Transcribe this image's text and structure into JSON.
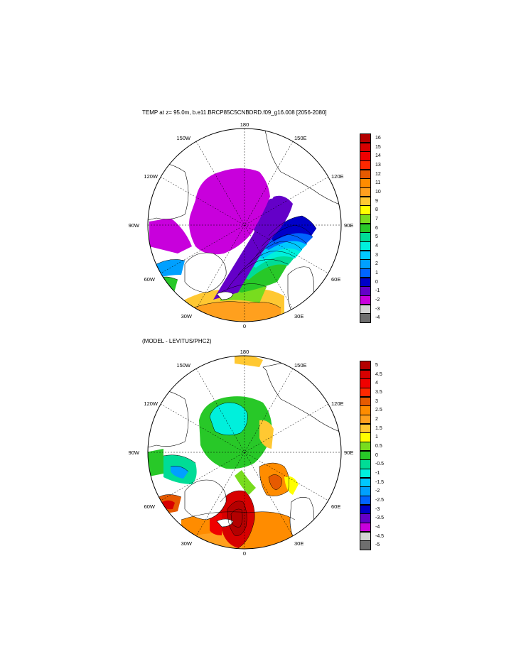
{
  "plots": [
    {
      "title": "TEMP at z=  95.0m, b.e11.BRCP85C5CNBDRD.f09_g16.008 [2056-2080]",
      "longitude_labels": {
        "top": "180",
        "upper_left": "150W",
        "upper_right": "150E",
        "left_upper": "120W",
        "right_upper": "120E",
        "left": "90W",
        "right": "90E",
        "left_lower": "60W",
        "right_lower": "60E",
        "lower_left": "30W",
        "lower_right": "30E",
        "bottom": "0"
      },
      "colorbar": {
        "labels": [
          "16",
          "15",
          "14",
          "13",
          "12",
          "11",
          "10",
          "9",
          "8",
          "7",
          "6",
          "5",
          "4",
          "3",
          "2",
          "1",
          "0",
          "-1",
          "-2",
          "-3",
          "-4"
        ],
        "colors": [
          "#b40000",
          "#d70000",
          "#f00000",
          "#ff2800",
          "#e65a00",
          "#ff8c00",
          "#ffa01e",
          "#ffc832",
          "#ffff00",
          "#78dc1e",
          "#28c828",
          "#00dc96",
          "#00f0dc",
          "#00c8ff",
          "#00a0ff",
          "#0064ff",
          "#0000c8",
          "#6400c8",
          "#c800dc",
          "#d2d2d2",
          "#6e6e6e"
        ]
      }
    },
    {
      "title": "(MODEL - LEVITUS/PHC2)",
      "longitude_labels": {
        "top": "180",
        "upper_left": "150W",
        "upper_right": "150E",
        "left_upper": "120W",
        "right_upper": "120E",
        "left": "90W",
        "right": "90E",
        "left_lower": "60W",
        "right_lower": "60E",
        "lower_left": "30W",
        "lower_right": "30E",
        "bottom": "0"
      },
      "colorbar": {
        "labels": [
          "5",
          "4.5",
          "4",
          "3.5",
          "3",
          "2.5",
          "2",
          "1.5",
          "1",
          "0.5",
          "0",
          "-0.5",
          "-1",
          "-1.5",
          "-2",
          "-2.5",
          "-3",
          "-3.5",
          "-4",
          "-4.5",
          "-5"
        ],
        "colors": [
          "#b40000",
          "#d70000",
          "#f00000",
          "#ff2800",
          "#e65a00",
          "#ff8c00",
          "#ffa01e",
          "#ffc832",
          "#ffff00",
          "#78dc1e",
          "#28c828",
          "#00dc96",
          "#00f0dc",
          "#00c8ff",
          "#00a0ff",
          "#0064ff",
          "#0000c8",
          "#6400c8",
          "#c800dc",
          "#d2d2d2",
          "#6e6e6e"
        ]
      }
    }
  ]
}
